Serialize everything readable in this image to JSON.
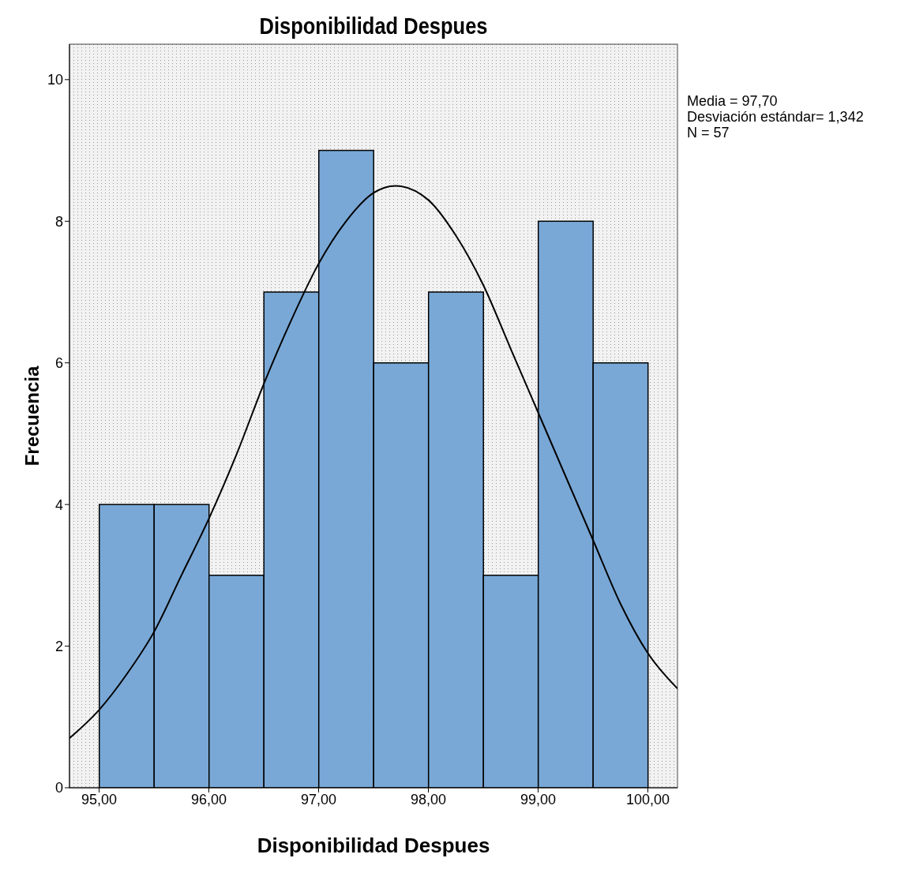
{
  "chart_data": {
    "type": "histogram",
    "title": "Disponibilidad Despues",
    "xlabel": "Disponibilidad Despues",
    "ylabel": "Frecuencia",
    "bins": [
      95,
      95.5,
      96,
      96.5,
      97,
      97.5,
      98,
      98.5,
      99,
      99.5,
      100
    ],
    "values": [
      4,
      4,
      3,
      7,
      9,
      6,
      7,
      3,
      8,
      6
    ],
    "color": "#79a8d6",
    "series": [
      {
        "type": "line",
        "color": "#000000",
        "x": [
          94.73,
          95,
          95.25,
          95.5,
          95.75,
          96,
          96.25,
          96.5,
          96.75,
          97,
          97.25,
          97.5,
          97.7,
          98,
          98.25,
          98.5,
          98.75,
          99,
          99.25,
          99.5,
          99.75,
          100,
          100.27
        ],
        "values": [
          0.7,
          1.1,
          1.6,
          2.2,
          3.0,
          3.8,
          4.7,
          5.7,
          6.6,
          7.4,
          8.0,
          8.4,
          8.5,
          8.3,
          7.8,
          7.1,
          6.2,
          5.3,
          4.4,
          3.5,
          2.6,
          1.9,
          1.4
        ]
      }
    ],
    "xlim": [
      94.73,
      100.27
    ],
    "xticks": [
      {
        "value": 95,
        "label": "95,00"
      },
      {
        "value": 96,
        "label": "96,00"
      },
      {
        "value": 97,
        "label": "97,00"
      },
      {
        "value": 98,
        "label": "98,00"
      },
      {
        "value": 99,
        "label": "99,00"
      },
      {
        "value": 100,
        "label": "100,00"
      }
    ],
    "ylim": [
      0,
      10.5
    ],
    "yticks": [
      0,
      2,
      4,
      6,
      8,
      10
    ],
    "annotations": [
      "Media = 97,70",
      "Desviación estándar= 1,342",
      "N = 57"
    ]
  }
}
